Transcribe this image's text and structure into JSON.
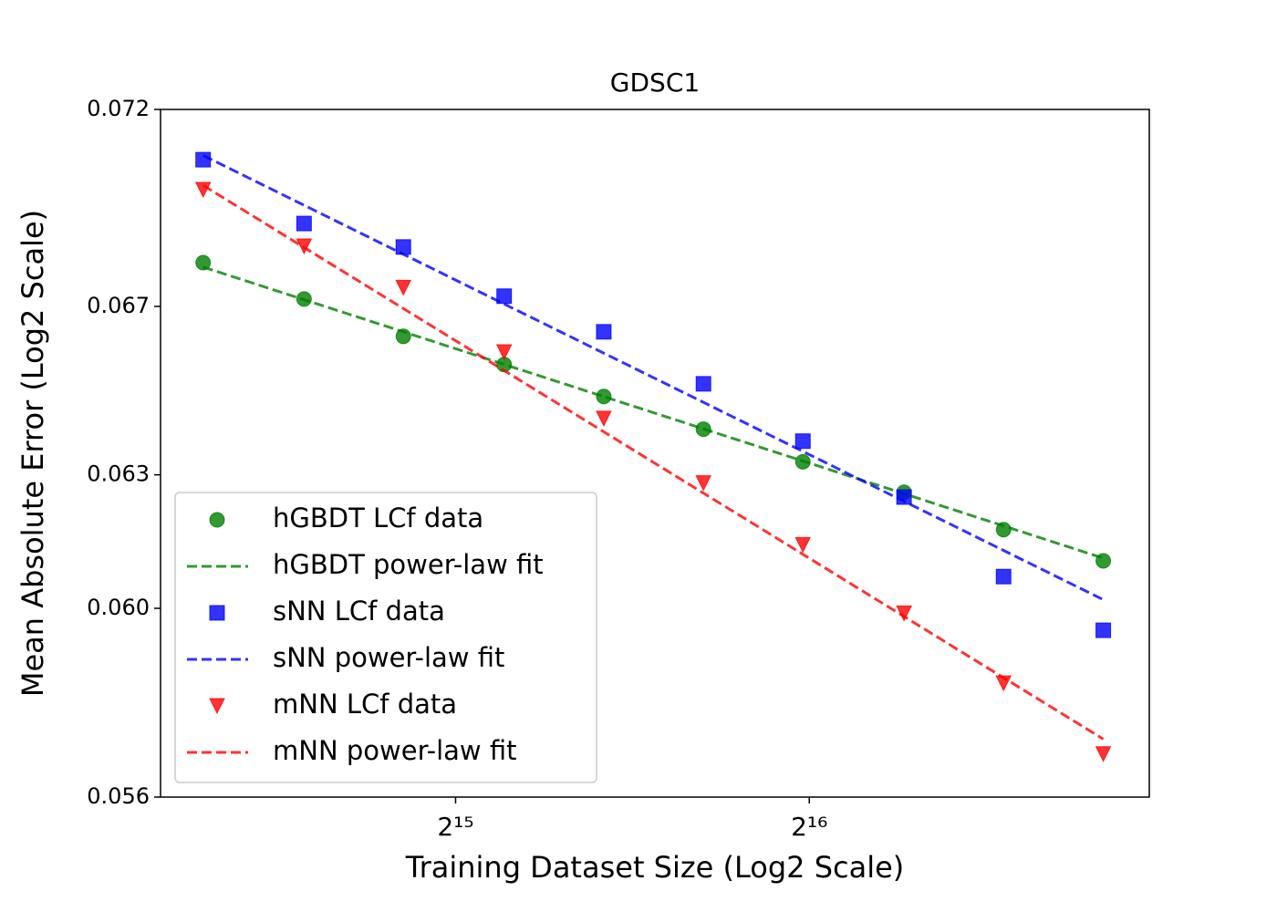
{
  "chart_data": {
    "type": "scatter",
    "title": "GDSC1",
    "x_label": "Training Dataset Size (Log2 Scale)",
    "y_label": "Mean Absolute Error (Log2 Scale)",
    "x_scale": "log2",
    "y_scale": "log2",
    "xlim": [
      18380,
      127600
    ],
    "ylim": [
      0.056,
      0.072
    ],
    "xticks": [
      {
        "value": 32768,
        "label": "2¹⁵"
      },
      {
        "value": 65536,
        "label": "2¹⁶"
      }
    ],
    "yticks": [
      0.056,
      {
        "value": 0.06,
        "label": "0.060"
      },
      0.063,
      0.067,
      0.072
    ],
    "legend": "lower left",
    "series": [
      {
        "name": "hGBDT LCf data",
        "style": "marker",
        "marker": "circle",
        "color": "#008000",
        "x": [
          19980,
          24350,
          29580,
          36040,
          43810,
          53260,
          64720,
          78910,
          95900,
          116600
        ],
        "values": [
          0.06808,
          0.06718,
          0.06627,
          0.06559,
          0.06483,
          0.06406,
          0.0633,
          0.0626,
          0.06175,
          0.06105
        ]
      },
      {
        "name": "hGBDT power-law fit",
        "style": "dashed",
        "color": "#008000",
        "x": [
          19980,
          116600
        ],
        "values": [
          0.06797,
          0.06111
        ]
      },
      {
        "name": "sNN LCf data",
        "style": "marker",
        "marker": "square",
        "color": "#0000ff",
        "x": [
          19980,
          24350,
          29580,
          36040,
          43810,
          53260,
          64720,
          78910,
          95900,
          116600
        ],
        "values": [
          0.07069,
          0.06906,
          0.06847,
          0.06725,
          0.06638,
          0.06513,
          0.06378,
          0.06249,
          0.0607,
          0.05952
        ]
      },
      {
        "name": "sNN power-law fit",
        "style": "dashed",
        "color": "#0000ff",
        "x": [
          19980,
          116600
        ],
        "values": [
          0.0708,
          0.06019
        ]
      },
      {
        "name": "mNN LCf data",
        "style": "marker",
        "marker": "triangle-down",
        "color": "#ff0000",
        "x": [
          19980,
          24350,
          29580,
          36040,
          43810,
          53260,
          64720,
          78910,
          95900,
          116600
        ],
        "values": [
          0.06992,
          0.06849,
          0.06746,
          0.06589,
          0.06431,
          0.06281,
          0.06141,
          0.05989,
          0.05838,
          0.05689
        ]
      },
      {
        "name": "mNN power-law fit",
        "style": "dashed",
        "color": "#ff0000",
        "x": [
          19980,
          116600
        ],
        "values": [
          0.07003,
          0.0572
        ]
      }
    ]
  }
}
